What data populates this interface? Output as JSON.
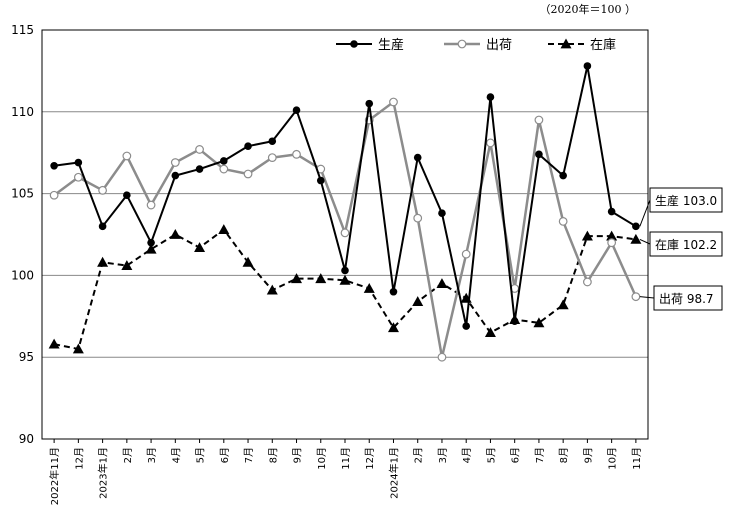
{
  "chart_data": {
    "type": "line",
    "unit_note": "（2020年＝100 ）",
    "ylim": [
      90,
      115
    ],
    "yticks": [
      90,
      95,
      100,
      105,
      110,
      115
    ],
    "categories": [
      "2022年11月",
      "12月",
      "2023年1月",
      "2月",
      "3月",
      "4月",
      "5月",
      "6月",
      "7月",
      "8月",
      "9月",
      "10月",
      "11月",
      "12月",
      "2024年1月",
      "2月",
      "3月",
      "4月",
      "5月",
      "6月",
      "7月",
      "8月",
      "9月",
      "10月",
      "11月"
    ],
    "series": [
      {
        "name": "生産",
        "style": "solid-black-filled-circle",
        "color": "#000000",
        "values": [
          106.7,
          106.9,
          103.0,
          104.9,
          102.0,
          106.1,
          106.5,
          107.0,
          107.9,
          108.2,
          110.1,
          105.8,
          100.3,
          110.5,
          99.0,
          107.2,
          103.8,
          96.9,
          110.9,
          97.2,
          107.4,
          106.1,
          112.8,
          103.9,
          103.0
        ]
      },
      {
        "name": "出荷",
        "style": "solid-gray-open-circle",
        "color": "#8c8c8c",
        "values": [
          104.9,
          106.0,
          105.2,
          107.3,
          104.3,
          106.9,
          107.7,
          106.5,
          106.2,
          107.2,
          107.4,
          106.5,
          102.6,
          109.5,
          110.6,
          103.5,
          95.0,
          101.3,
          108.1,
          99.2,
          109.5,
          103.3,
          99.6,
          102.0,
          98.7
        ]
      },
      {
        "name": "在庫",
        "style": "dashed-black-filled-triangle",
        "color": "#000000",
        "values": [
          95.8,
          95.5,
          100.8,
          100.6,
          101.6,
          102.5,
          101.7,
          102.8,
          100.8,
          99.1,
          99.8,
          99.8,
          99.7,
          99.2,
          96.8,
          98.4,
          99.5,
          98.6,
          96.5,
          97.3,
          97.1,
          98.2,
          102.4,
          102.4,
          102.2
        ]
      }
    ],
    "callouts": [
      {
        "label": "生産 103.0"
      },
      {
        "label": "在庫 102.2"
      },
      {
        "label": "出荷 98.7"
      }
    ],
    "legend_position": "top-right",
    "grid": "horizontal"
  }
}
